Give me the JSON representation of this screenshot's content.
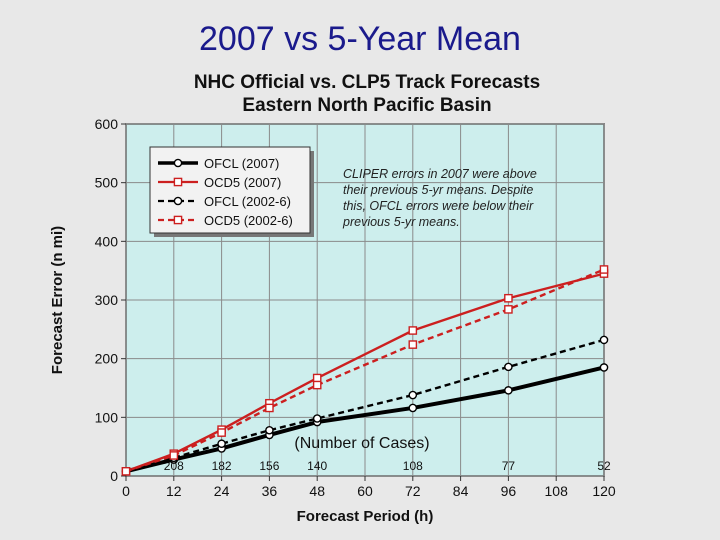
{
  "slide_title": "2007 vs 5-Year Mean",
  "chart_data": {
    "type": "line",
    "title": "NHC Official vs. CLP5 Track Forecasts",
    "subtitle": "Eastern North Pacific Basin",
    "xlabel": "Forecast Period (h)",
    "ylabel": "Forecast Error (n mi)",
    "xlim": [
      0,
      120
    ],
    "ylim": [
      0,
      600
    ],
    "xticks": [
      0,
      12,
      24,
      36,
      48,
      60,
      72,
      84,
      96,
      108,
      120
    ],
    "yticks": [
      0,
      100,
      200,
      300,
      400,
      500,
      600
    ],
    "grid": true,
    "x": [
      0,
      12,
      24,
      36,
      48,
      72,
      96,
      120
    ],
    "series": [
      {
        "name": "OFCL (2007)",
        "values": [
          8,
          28,
          47,
          70,
          92,
          116,
          146,
          185
        ],
        "color": "#000000",
        "dash": false,
        "marker": "circle"
      },
      {
        "name": "OCD5 (2007)",
        "values": [
          8,
          38,
          79,
          124,
          167,
          248,
          303,
          345
        ],
        "color": "#cc1f1f",
        "dash": false,
        "marker": "square"
      },
      {
        "name": "OFCL (2002-6)",
        "values": [
          8,
          31,
          55,
          78,
          98,
          138,
          186,
          232
        ],
        "color": "#000000",
        "dash": true,
        "marker": "circle"
      },
      {
        "name": "OCD5 (2002-6)",
        "values": [
          8,
          35,
          74,
          116,
          155,
          224,
          284,
          352
        ],
        "color": "#cc1f1f",
        "dash": true,
        "marker": "square"
      }
    ],
    "legend_position": "top-left",
    "cases_title": "(Number of Cases)",
    "cases": [
      {
        "x": 12,
        "label": "208"
      },
      {
        "x": 24,
        "label": "182"
      },
      {
        "x": 36,
        "label": "156"
      },
      {
        "x": 48,
        "label": "140"
      },
      {
        "x": 72,
        "label": "108"
      },
      {
        "x": 96,
        "label": "77"
      },
      {
        "x": 120,
        "label": "52"
      }
    ],
    "annotation": [
      "CLIPER errors in 2007 were above",
      "their previous 5-yr means.  Despite",
      "this, OFCL errors were below their",
      "previous 5-yr means."
    ],
    "colors": {
      "plot_bg": "#cdeeed",
      "grid": "#8a8a8a"
    }
  }
}
